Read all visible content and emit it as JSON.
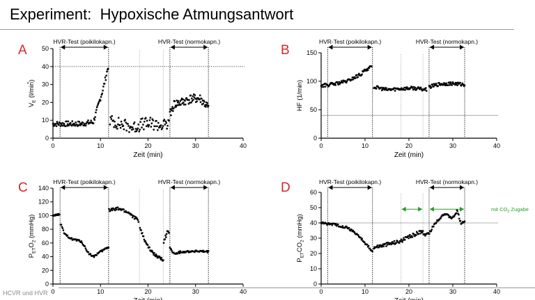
{
  "title": "Experiment:  Hypoxische Atmungsantwort",
  "footer": "HCVR und HVR",
  "annotation_color": "#2a9d2a",
  "panel_letter_color": "#d9242b",
  "chart_data": [
    {
      "panel": "A",
      "type": "scatter",
      "xlabel": "Zeit (min)",
      "ylabel": {
        "main": "V",
        "sub": "E",
        "rest": " (l/min)"
      },
      "xlim": [
        0,
        40
      ],
      "ylim": [
        0,
        50
      ],
      "xticks": [
        0,
        10,
        20,
        30,
        40
      ],
      "yticks": [
        0,
        10,
        20,
        30,
        40,
        50
      ],
      "ref_y": 40,
      "vlines_dotted": [
        1.5,
        11.7,
        24.6,
        32.7
      ],
      "vlines_light": [
        18.2,
        23.2
      ],
      "arrows": [
        {
          "label": "HVR-Test (poikilokapn.)",
          "from": 1.5,
          "to": 11.7
        },
        {
          "label": "HVR-Test (normokapn.)",
          "from": 24.6,
          "to": 32.7
        }
      ],
      "segments": [
        {
          "x": [
            0,
            3,
            6,
            8.5,
            9.5,
            10.5,
            11.2,
            11.6
          ],
          "y": [
            8,
            8,
            8,
            9,
            18,
            27,
            35,
            40
          ],
          "n": 95,
          "noise": 1.5
        },
        {
          "x": [
            12,
            14,
            17,
            19,
            21,
            23,
            24.4
          ],
          "y": [
            10,
            8,
            6,
            8,
            8,
            7,
            8
          ],
          "n": 90,
          "noise": 3.5
        },
        {
          "x": [
            24.6,
            25.5,
            27,
            29,
            31,
            32.7
          ],
          "y": [
            13,
            19,
            20,
            22,
            22,
            17
          ],
          "n": 75,
          "noise": 2.5
        }
      ]
    },
    {
      "panel": "B",
      "type": "scatter",
      "xlabel": "Zeit (min)",
      "ylabel": {
        "main": "HF",
        "sub": "",
        "rest": " (1/min)"
      },
      "xlim": [
        0,
        40
      ],
      "ylim": [
        0,
        150
      ],
      "xticks": [
        0,
        10,
        20,
        30,
        40
      ],
      "yticks": [
        0,
        50,
        100,
        150
      ],
      "ref_y": 40,
      "vlines_dotted": [
        1.5,
        11.7,
        24.6,
        32.7
      ],
      "vlines_light": [
        18.2,
        23.2
      ],
      "arrows": [
        {
          "label": "HVR-Test (poikilokapn.)",
          "from": 1.5,
          "to": 11.7
        },
        {
          "label": "HVR-Test (normokapn.)",
          "from": 24.6,
          "to": 32.7
        }
      ],
      "segments": [
        {
          "x": [
            0,
            3,
            6,
            9,
            10.5,
            11.5
          ],
          "y": [
            92,
            95,
            100,
            112,
            122,
            125
          ],
          "n": 85,
          "noise": 3
        },
        {
          "x": [
            12,
            15,
            18,
            21,
            24
          ],
          "y": [
            90,
            85,
            87,
            88,
            85
          ],
          "n": 85,
          "noise": 3
        },
        {
          "x": [
            24.6,
            27,
            30,
            32.7
          ],
          "y": [
            90,
            95,
            96,
            94
          ],
          "n": 65,
          "noise": 3
        }
      ]
    },
    {
      "panel": "C",
      "type": "scatter",
      "xlabel": "Zeit (min)",
      "ylabel": {
        "main": "P",
        "sub": "ET",
        "rest": "O",
        "sub2": "2",
        "rest2": " (mmHg)"
      },
      "xlim": [
        0,
        40
      ],
      "ylim": [
        0,
        140
      ],
      "xticks": [
        0,
        10,
        20,
        30,
        40
      ],
      "yticks": [
        0,
        20,
        40,
        60,
        80,
        100,
        120,
        140
      ],
      "ref_y": null,
      "vlines_dotted": [
        1.5,
        11.7,
        24.6,
        32.7
      ],
      "vlines_light": [
        18.2,
        23.2
      ],
      "arrows": [
        {
          "label": "HVR-Test (poikilokapn.)",
          "from": 1.5,
          "to": 11.7
        },
        {
          "label": "HVR-Test (normokapn.)",
          "from": 24.6,
          "to": 32.7
        }
      ],
      "segments": [
        {
          "x": [
            0,
            1.4
          ],
          "y": [
            100,
            102
          ],
          "n": 14,
          "noise": 1
        },
        {
          "x": [
            1.6,
            2.5,
            4,
            6,
            7.5,
            8.5,
            10,
            11.7
          ],
          "y": [
            88,
            72,
            66,
            62,
            45,
            40,
            47,
            54
          ],
          "n": 70,
          "noise": 1.5
        },
        {
          "x": [
            11.8,
            14,
            16,
            17.5,
            18
          ],
          "y": [
            108,
            110,
            104,
            95,
            93
          ],
          "n": 45,
          "noise": 2.5
        },
        {
          "x": [
            18.3,
            19.5,
            21,
            22.5,
            23.2
          ],
          "y": [
            82,
            60,
            45,
            38,
            35
          ],
          "n": 40,
          "noise": 2
        },
        {
          "x": [
            23.3,
            24,
            24.4
          ],
          "y": [
            62,
            75,
            74
          ],
          "n": 10,
          "noise": 3
        },
        {
          "x": [
            24.6,
            25.5,
            27,
            30,
            32.7
          ],
          "y": [
            52,
            44,
            47,
            48,
            47
          ],
          "n": 60,
          "noise": 1.5
        }
      ]
    },
    {
      "panel": "D",
      "type": "scatter",
      "xlabel": "Zeit (min)",
      "ylabel": {
        "main": "P",
        "sub": "ET",
        "rest": "CO",
        "sub2": "2",
        "rest2": " (mmHg)"
      },
      "xlim": [
        0,
        40
      ],
      "ylim": [
        0,
        60
      ],
      "xticks": [
        0,
        10,
        20,
        30,
        40
      ],
      "yticks": [
        0,
        10,
        20,
        30,
        40,
        50,
        60
      ],
      "ref_y": 40,
      "vlines_dotted": [
        1.5,
        11.7,
        24.6,
        32.7
      ],
      "vlines_light": [
        18.2,
        23.2
      ],
      "arrows": [
        {
          "label": "HVR-Test (poikilokapn.)",
          "from": 1.5,
          "to": 11.7
        },
        {
          "label": "HVR-Test (normokapn.)",
          "from": 24.6,
          "to": 32.7
        }
      ],
      "green_arrows": [
        {
          "from": 18.2,
          "to": 23.2
        },
        {
          "from": 24.6,
          "to": 32.7
        }
      ],
      "green_note": {
        "main": "mit CO",
        "sub": "2",
        "rest": " Zugabe"
      },
      "segments": [
        {
          "x": [
            0,
            3,
            6,
            8,
            10,
            11.7
          ],
          "y": [
            40,
            39,
            37,
            33,
            27,
            21
          ],
          "n": 80,
          "noise": 0.8
        },
        {
          "x": [
            12,
            15,
            18,
            21,
            23.2
          ],
          "y": [
            24,
            26,
            28,
            32,
            35
          ],
          "n": 80,
          "noise": 1.2
        },
        {
          "x": [
            23.3,
            24.6,
            26,
            28,
            30,
            31,
            31.8,
            32.7
          ],
          "y": [
            32,
            33,
            40,
            46,
            43,
            48,
            40,
            41
          ],
          "n": 70,
          "noise": 0.8
        }
      ]
    }
  ]
}
